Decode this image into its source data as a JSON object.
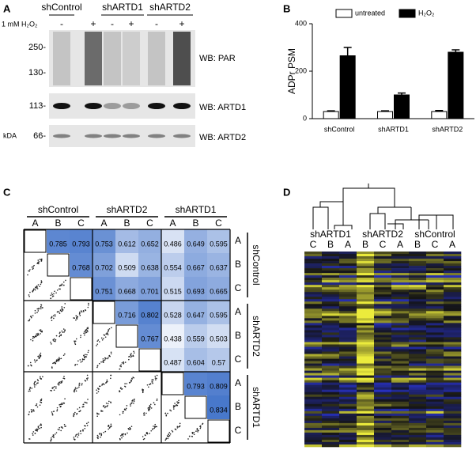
{
  "panels": {
    "a": {
      "label": "A",
      "treatment": "1 mM H₂O₂",
      "groups": [
        "shControl",
        "shARTD1",
        "shARTD2"
      ],
      "signs": [
        "-",
        "+",
        "-",
        "+",
        "-",
        "+"
      ],
      "markers": [
        "250-",
        "130-",
        "113-",
        "66-"
      ],
      "unit": "kDA",
      "blots": [
        "WB: PAR",
        "WB: ARTD1",
        "WB: ARTD2"
      ]
    },
    "b": {
      "label": "B"
    },
    "c": {
      "label": "C",
      "groups": [
        "shControl",
        "shARTD2",
        "shARTD1"
      ],
      "replicates": [
        "A",
        "B",
        "C"
      ],
      "matrix": [
        [
          null,
          0.785,
          0.793,
          0.753,
          0.612,
          0.652,
          0.486,
          0.649,
          0.595
        ],
        [
          null,
          null,
          0.768,
          0.702,
          0.509,
          0.638,
          0.554,
          0.667,
          0.637
        ],
        [
          null,
          null,
          null,
          0.751,
          0.668,
          0.701,
          0.515,
          0.693,
          0.665
        ],
        [
          null,
          null,
          null,
          null,
          0.716,
          0.802,
          0.528,
          0.647,
          0.595
        ],
        [
          null,
          null,
          null,
          null,
          null,
          0.767,
          0.438,
          0.559,
          0.503
        ],
        [
          null,
          null,
          null,
          null,
          null,
          null,
          0.487,
          0.604,
          0.57
        ],
        [
          null,
          null,
          null,
          null,
          null,
          null,
          null,
          0.793,
          0.809
        ],
        [
          null,
          null,
          null,
          null,
          null,
          null,
          null,
          null,
          0.834
        ],
        [
          null,
          null,
          null,
          null,
          null,
          null,
          null,
          null,
          null
        ]
      ]
    },
    "d": {
      "label": "D",
      "groups": [
        "shARTD1",
        "shARTD2",
        "shControl"
      ],
      "columns": [
        "C",
        "B",
        "A",
        "B",
        "C",
        "A",
        "B",
        "C",
        "A"
      ]
    }
  },
  "chart_data": {
    "type": "bar",
    "ylabel": "ADPr PSM",
    "categories": [
      "shControl",
      "shARTD1",
      "shARTD2"
    ],
    "series": [
      {
        "name": "untreated",
        "color": "#ffffff",
        "values": [
          30,
          30,
          30
        ],
        "errors": [
          3,
          3,
          4
        ]
      },
      {
        "name": "H₂O₂",
        "color": "#000000",
        "values": [
          265,
          100,
          280
        ],
        "errors": [
          35,
          8,
          10
        ]
      }
    ],
    "ylim": [
      0,
      400
    ],
    "yticks": [
      0,
      200,
      400
    ]
  }
}
